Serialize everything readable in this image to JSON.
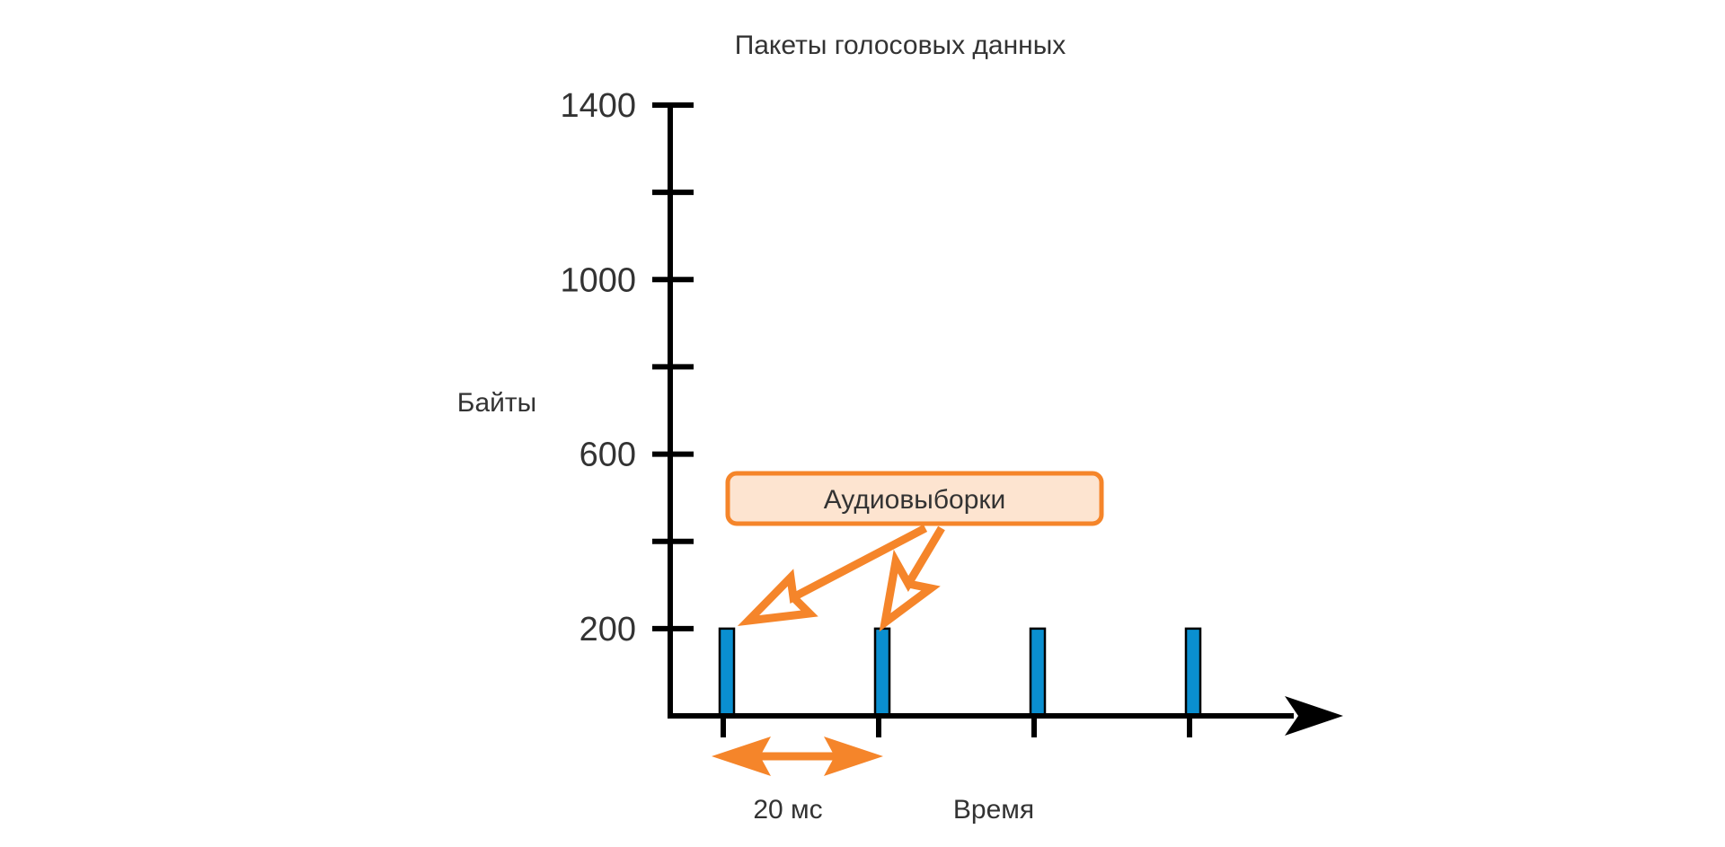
{
  "chart_data": {
    "type": "bar",
    "title": "Пакеты голосовых данных",
    "ylabel": "Байты",
    "xlabel": "Время",
    "ylim": [
      0,
      1400
    ],
    "yticks": [
      200,
      400,
      600,
      800,
      1000,
      1200,
      1400
    ],
    "ytick_labels": [
      {
        "value": 200,
        "label": "200"
      },
      {
        "value": 600,
        "label": "600"
      },
      {
        "value": 1000,
        "label": "1000"
      },
      {
        "value": 1400,
        "label": "1400"
      }
    ],
    "x": [
      1,
      2,
      3,
      4
    ],
    "values": [
      200,
      200,
      200,
      200
    ],
    "bar_color": "#0a8fd0",
    "annotations": {
      "callout": "Аудиовыборки",
      "callout_fill": "#fde4d0",
      "callout_border": "#f5852a",
      "interval": "20 мс",
      "arrow_color": "#f5852a"
    },
    "grid": false
  }
}
